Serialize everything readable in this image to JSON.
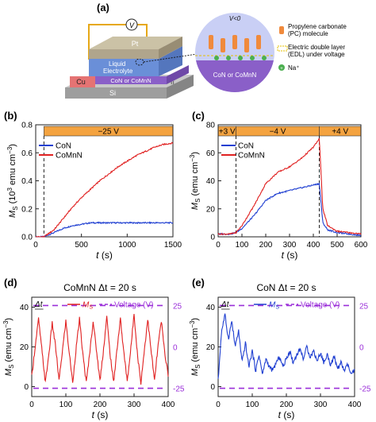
{
  "figure": {
    "panel_labels": [
      "(a)",
      "(b)",
      "(c)",
      "(d)",
      "(e)"
    ]
  },
  "schematic": {
    "voltmeter_symbol": "V",
    "layers": {
      "top_electrode": "Pt",
      "liquid_line1": "Liquid",
      "liquid_line2": "Electrolyte",
      "film": "CoN or CoMnN",
      "side_contact": "Cu",
      "substrate": "Si",
      "ti": "Ti"
    },
    "inset": {
      "voltage_condition": "V<0",
      "film_label": "CoN or CoMnN",
      "pc_legend": "Propylene carbonate (PC) molecule",
      "edl_legend": "Electric double layer (EDL) under voltage",
      "na_legend": "Na⁺"
    },
    "colors": {
      "pt": "#b0a58c",
      "liquid": "#6a8fd8",
      "film": "#8a5fc8",
      "cu": "#e57373",
      "si": "#9e9e9e",
      "wire": "#e6a817",
      "pc_molecule": "#f08a3c",
      "na_ion": "#4caf50"
    }
  },
  "chart_data": [
    {
      "panel": "(b)",
      "type": "line",
      "xlabel": "t (s)",
      "ylabel": "M_S (10^3 emu cm^-3)",
      "xlim": [
        0,
        1500
      ],
      "ylim": [
        0,
        0.8
      ],
      "xticks": [
        0,
        500,
        1000,
        1500
      ],
      "yticks": [
        0.0,
        0.2,
        0.4,
        0.6,
        0.8
      ],
      "ytick_labels": [
        "0.0",
        "0.2",
        "0.4",
        "0.6",
        "0.8"
      ],
      "annotations": [
        {
          "text": "−25 V",
          "x_range": [
            90,
            1500
          ]
        }
      ],
      "vline_x": 90,
      "legend": "top-left",
      "series": [
        {
          "name": "CoN",
          "color": "#1f3fd1",
          "x": [
            0,
            90,
            200,
            300,
            400,
            500,
            600,
            700,
            800,
            900,
            1000,
            1100,
            1200,
            1300,
            1400,
            1500
          ],
          "y": [
            0.0,
            0.0,
            0.03,
            0.06,
            0.08,
            0.09,
            0.1,
            0.1,
            0.1,
            0.1,
            0.1,
            0.1,
            0.1,
            0.1,
            0.1,
            0.1
          ]
        },
        {
          "name": "CoMnN",
          "color": "#e02020",
          "x": [
            0,
            90,
            200,
            300,
            400,
            500,
            600,
            700,
            800,
            900,
            1000,
            1100,
            1200,
            1300,
            1400,
            1500
          ],
          "y": [
            0.0,
            0.0,
            0.05,
            0.13,
            0.21,
            0.28,
            0.34,
            0.4,
            0.45,
            0.5,
            0.54,
            0.58,
            0.61,
            0.64,
            0.66,
            0.67
          ]
        }
      ]
    },
    {
      "panel": "(c)",
      "type": "line",
      "xlabel": "t (s)",
      "ylabel": "M_S (emu cm^-3)",
      "xlim": [
        0,
        600
      ],
      "ylim": [
        0,
        80
      ],
      "xticks": [
        0,
        100,
        200,
        300,
        400,
        500,
        600
      ],
      "yticks": [
        0,
        20,
        40,
        60,
        80
      ],
      "ytick_labels": [
        "0",
        "20",
        "40",
        "60",
        "80"
      ],
      "annotations": [
        {
          "text": "+3 V",
          "x_range": [
            0,
            75
          ]
        },
        {
          "text": "−4 V",
          "x_range": [
            75,
            425
          ]
        },
        {
          "text": "+4 V",
          "x_range": [
            425,
            600
          ]
        }
      ],
      "vline_x": [
        75,
        425
      ],
      "legend": "top-left",
      "series": [
        {
          "name": "CoN",
          "color": "#1f3fd1",
          "x": [
            0,
            50,
            75,
            100,
            150,
            200,
            250,
            300,
            350,
            400,
            425,
            440,
            460,
            500,
            550,
            600
          ],
          "y": [
            2,
            2,
            3,
            6,
            15,
            26,
            31,
            33,
            35,
            37,
            38,
            10,
            5,
            3,
            2,
            1
          ]
        },
        {
          "name": "CoMnN",
          "color": "#e02020",
          "x": [
            0,
            50,
            75,
            100,
            150,
            200,
            250,
            300,
            350,
            400,
            425,
            440,
            460,
            500,
            550,
            600
          ],
          "y": [
            2,
            2,
            3,
            8,
            22,
            38,
            46,
            50,
            56,
            64,
            70,
            20,
            8,
            4,
            3,
            2
          ]
        }
      ]
    },
    {
      "panel": "(d)",
      "type": "line",
      "title": "CoMnN Δt = 20 s",
      "xlabel": "t (s)",
      "ylabel": "M_S (emu cm^-3)",
      "y2label": "Voltage (V)",
      "xlim": [
        0,
        400
      ],
      "ylim": [
        -5,
        45
      ],
      "y2lim": [
        -30,
        30
      ],
      "xticks": [
        0,
        100,
        200,
        300,
        400
      ],
      "yticks": [
        0,
        20,
        40
      ],
      "ytick_labels": [
        "0",
        "20",
        "40"
      ],
      "y2ticks": [
        -25,
        0,
        25
      ],
      "y2tick_labels": [
        "-25",
        "0",
        "25"
      ],
      "annotations": [
        {
          "text": "Δt",
          "x_range": [
            0,
            20
          ]
        }
      ],
      "legend": "top",
      "series": [
        {
          "name": "M_S",
          "color": "#e02020",
          "x": [
            0,
            10,
            20,
            30,
            40,
            50,
            60,
            70,
            80,
            90,
            100,
            110,
            120,
            130,
            140,
            150,
            160,
            170,
            180,
            190,
            200,
            210,
            220,
            230,
            240,
            250,
            260,
            270,
            280,
            290,
            300,
            310,
            320,
            330,
            340,
            350,
            360,
            370,
            380,
            390,
            400
          ],
          "y": [
            5,
            20,
            34,
            18,
            2,
            16,
            32,
            20,
            3,
            18,
            33,
            17,
            2,
            19,
            34,
            16,
            2,
            17,
            33,
            18,
            3,
            18,
            35,
            16,
            2,
            19,
            34,
            17,
            3,
            18,
            37,
            16,
            2,
            18,
            34,
            18,
            3,
            20,
            33,
            17,
            6
          ]
        },
        {
          "name": "Voltage (V)",
          "color": "#9b30d9",
          "dashed": true,
          "axis": "right",
          "x": [
            0,
            400
          ],
          "y_levels": [
            25,
            -25
          ]
        }
      ]
    },
    {
      "panel": "(e)",
      "type": "line",
      "title": "CoN Δt = 20 s",
      "xlabel": "t (s)",
      "ylabel": "M_S (emu cm^-3)",
      "y2label": "Voltage (V)",
      "xlim": [
        0,
        400
      ],
      "ylim": [
        -5,
        45
      ],
      "y2lim": [
        -30,
        30
      ],
      "xticks": [
        0,
        100,
        200,
        300,
        400
      ],
      "yticks": [
        0,
        20,
        40
      ],
      "ytick_labels": [
        "0",
        "20",
        "40"
      ],
      "y2ticks": [
        -25,
        0,
        25
      ],
      "y2tick_labels": [
        "-25",
        "0",
        "25"
      ],
      "annotations": [
        {
          "text": "Δt",
          "x_range": [
            0,
            20
          ]
        }
      ],
      "legend": "top",
      "series": [
        {
          "name": "M_S",
          "color": "#1f3fd1",
          "x": [
            0,
            10,
            20,
            30,
            40,
            50,
            60,
            70,
            80,
            90,
            100,
            110,
            120,
            130,
            140,
            150,
            160,
            170,
            180,
            190,
            200,
            210,
            220,
            230,
            240,
            250,
            260,
            270,
            280,
            290,
            300,
            310,
            320,
            330,
            340,
            350,
            360,
            370,
            380,
            390,
            400
          ],
          "y": [
            3,
            28,
            36,
            24,
            33,
            20,
            28,
            12,
            22,
            10,
            18,
            8,
            16,
            6,
            14,
            10,
            8,
            12,
            15,
            10,
            14,
            18,
            12,
            16,
            19,
            14,
            20,
            15,
            18,
            13,
            17,
            12,
            16,
            11,
            15,
            9,
            12,
            8,
            11,
            6,
            8
          ]
        },
        {
          "name": "Voltage (V)",
          "color": "#9b30d9",
          "dashed": true,
          "axis": "right",
          "x": [
            0,
            400
          ],
          "y_levels": [
            25,
            -25
          ]
        }
      ]
    }
  ]
}
